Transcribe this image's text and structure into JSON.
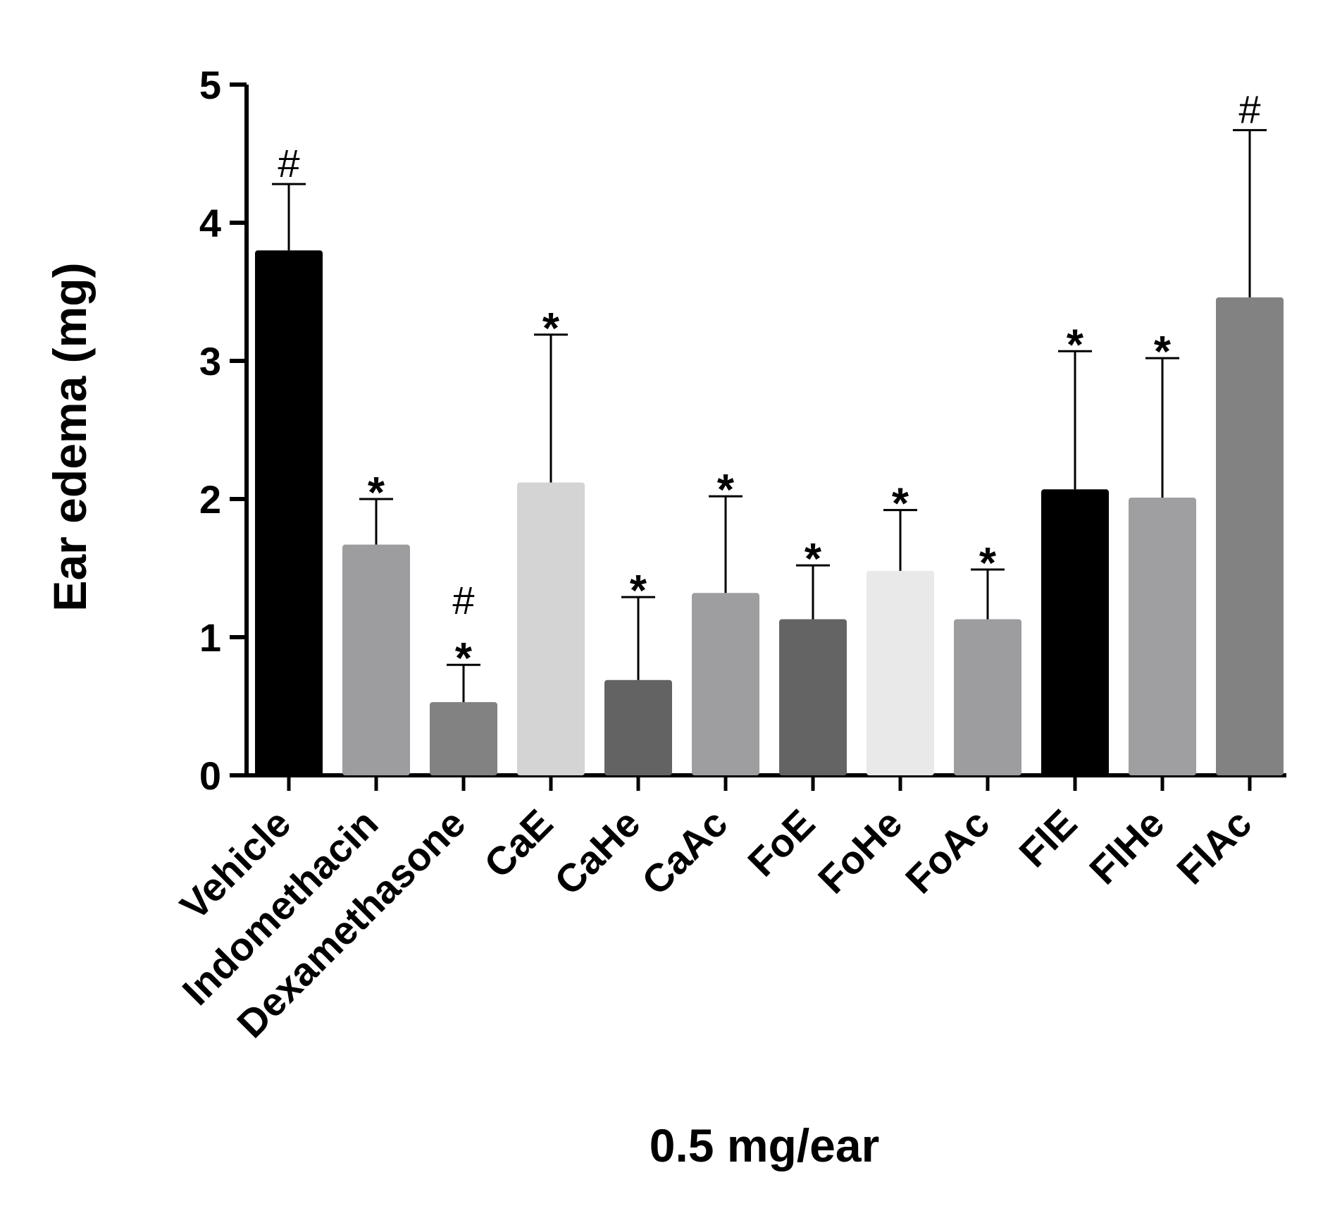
{
  "chart_data": {
    "type": "bar",
    "title": "",
    "xlabel": "0.5 mg/ear",
    "ylabel": "Ear edema (mg)",
    "ylim": [
      0,
      5
    ],
    "yticks": [
      0,
      1,
      2,
      3,
      4,
      5
    ],
    "categories": [
      "Vehicle",
      "Indomethacin",
      "Dexamethasone",
      "CaE",
      "CaHe",
      "CaAc",
      "FoE",
      "FoHe",
      "FoAc",
      "FlE",
      "FlHe",
      "FlAc"
    ],
    "values": [
      3.8,
      1.67,
      0.53,
      2.12,
      0.69,
      1.32,
      1.13,
      1.48,
      1.13,
      2.07,
      2.01,
      3.46
    ],
    "errors": [
      0.48,
      0.33,
      0.27,
      1.07,
      0.6,
      0.7,
      0.39,
      0.44,
      0.36,
      1.0,
      1.01,
      1.21
    ],
    "colors": [
      "#000000",
      "#9d9c9f",
      "#828282",
      "#d4d4d4",
      "#636363",
      "#9e9ea1",
      "#646464",
      "#e9e9e9",
      "#9d9c9f",
      "#000000",
      "#9f9ea1",
      "#828282"
    ],
    "significance": [
      [
        "#"
      ],
      [
        "*"
      ],
      [
        "*",
        "#"
      ],
      [
        "*"
      ],
      [
        "*"
      ],
      [
        "*"
      ],
      [
        "*"
      ],
      [
        "*"
      ],
      [
        "*"
      ],
      [
        "*"
      ],
      [
        "*"
      ],
      [
        "#"
      ]
    ],
    "grid": false,
    "legend": "none"
  }
}
